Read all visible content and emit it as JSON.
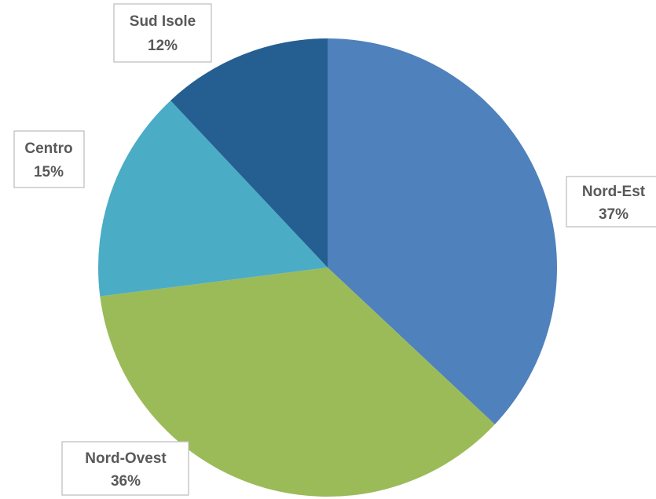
{
  "chart_data": {
    "type": "pie",
    "title": "",
    "start_angle_deg": 0,
    "direction": "clockwise",
    "slices": [
      {
        "name": "Nord-Est",
        "value": 37,
        "label": "37%",
        "color": "#4f81bd"
      },
      {
        "name": "Nord-Ovest",
        "value": 36,
        "label": "36%",
        "color": "#9bbb59"
      },
      {
        "name": "Centro",
        "value": 15,
        "label": "15%",
        "color": "#4bacc6"
      },
      {
        "name": "Sud Isole",
        "value": 12,
        "label": "12%",
        "color": "#255e91"
      }
    ],
    "legend": "none",
    "data_labels": "category-and-percent"
  }
}
